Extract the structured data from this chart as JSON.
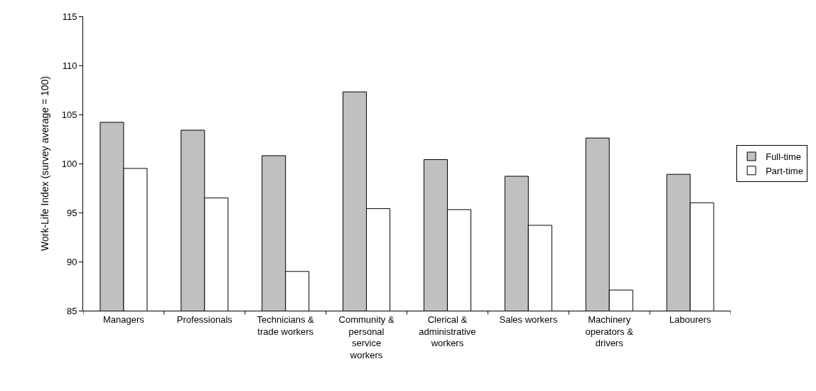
{
  "chart_data": {
    "type": "bar",
    "ylabel": "Work-Life Index (survey average = 100)",
    "categories": [
      "Managers",
      "Professionals",
      "Technicians & trade workers",
      "Community & personal service workers",
      "Clerical & administrative workers",
      "Sales workers",
      "Machinery operators & drivers",
      "Labourers"
    ],
    "series": [
      {
        "name": "Full-time",
        "color": "#c0c0c0",
        "values": [
          104.2,
          103.4,
          100.8,
          107.3,
          100.4,
          98.7,
          102.6,
          98.9
        ]
      },
      {
        "name": "Part-time",
        "color": "#ffffff",
        "values": [
          99.5,
          96.5,
          89.0,
          95.4,
          95.3,
          93.7,
          87.1,
          96.0
        ]
      }
    ],
    "ylim": [
      85,
      115
    ],
    "yticks": [
      85,
      90,
      95,
      100,
      105,
      110,
      115
    ],
    "grid": false,
    "legend": "right"
  }
}
